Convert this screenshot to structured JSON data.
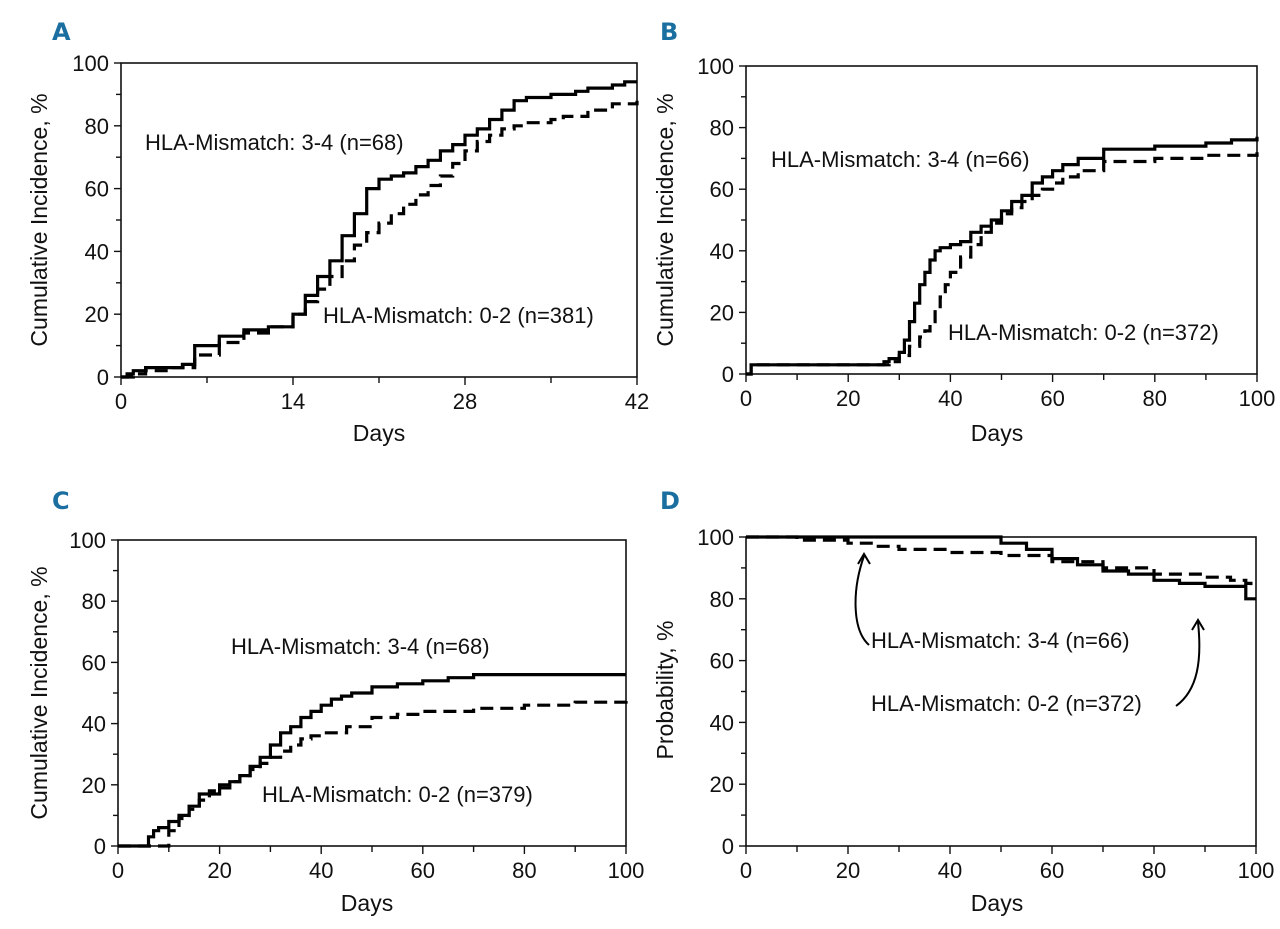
{
  "chart_data": [
    {
      "id": "A",
      "letter": "A",
      "type": "line",
      "xlabel": "Days",
      "ylabel": "Cumulative Incidence, %",
      "xlim": [
        0,
        42
      ],
      "ylim": [
        0,
        100
      ],
      "xticks": [
        0,
        14,
        28,
        42
      ],
      "yticks": [
        0,
        20,
        40,
        60,
        80,
        100
      ],
      "minor_xticks": [
        7,
        21,
        35
      ],
      "annotations": [
        "HLA-Mismatch: 3-4 (n=68)",
        "HLA-Mismatch: 0-2 (n=381)"
      ],
      "series": [
        {
          "name": "HLA-Mismatch: 3-4 (n=68)",
          "style": "solid",
          "x": [
            0,
            0.5,
            1,
            2,
            5,
            6,
            8,
            10,
            12,
            13,
            14,
            15,
            16,
            17,
            18,
            19,
            20,
            21,
            22,
            23,
            24,
            25,
            26,
            27,
            28,
            29,
            30,
            31,
            32,
            33,
            35,
            37,
            38,
            40,
            41,
            42
          ],
          "y": [
            0,
            1,
            2,
            3,
            4,
            10,
            13,
            15,
            16,
            16,
            20,
            26,
            32,
            37,
            45,
            52,
            60,
            63,
            64,
            65,
            67,
            69,
            72,
            74,
            77,
            79,
            82,
            85,
            88,
            89,
            90,
            91,
            92,
            93,
            94,
            94
          ]
        },
        {
          "name": "HLA-Mismatch: 0-2 (n=381)",
          "style": "dashed",
          "x": [
            0,
            1,
            2,
            4,
            6,
            8,
            10,
            12,
            14,
            15,
            16,
            17,
            18,
            19,
            20,
            21,
            22,
            23,
            24,
            25,
            26,
            27,
            28,
            29,
            30,
            31,
            32,
            33,
            35,
            36,
            38,
            40,
            42
          ],
          "y": [
            0,
            1,
            2,
            3,
            7,
            11,
            14,
            16,
            20,
            24,
            28,
            32,
            37,
            42,
            46,
            49,
            52,
            55,
            58,
            61,
            64,
            68,
            72,
            75,
            77,
            79,
            80,
            81,
            82,
            83,
            85,
            87,
            88
          ]
        }
      ]
    },
    {
      "id": "B",
      "letter": "B",
      "type": "line",
      "xlabel": "Days",
      "ylabel": "Cumulative Incidence, %",
      "xlim": [
        0,
        100
      ],
      "ylim": [
        0,
        100
      ],
      "xticks": [
        0,
        20,
        40,
        60,
        80,
        100
      ],
      "yticks": [
        0,
        20,
        40,
        60,
        80,
        100
      ],
      "minor_xticks": [
        10,
        30,
        50,
        70,
        90
      ],
      "annotations": [
        "HLA-Mismatch: 3-4 (n=66)",
        "HLA-Mismatch: 0-2 (n=372)"
      ],
      "series": [
        {
          "name": "HLA-Mismatch: 3-4 (n=66)",
          "style": "solid",
          "x": [
            0,
            1,
            20,
            25,
            27,
            28,
            30,
            31,
            32,
            33,
            34,
            35,
            36,
            37,
            38,
            40,
            42,
            44,
            46,
            48,
            50,
            52,
            54,
            56,
            58,
            60,
            62,
            65,
            70,
            80,
            90,
            95,
            100
          ],
          "y": [
            0,
            3,
            3,
            3,
            4,
            5,
            7,
            11,
            17,
            23,
            29,
            33,
            37,
            40,
            41,
            42,
            43,
            46,
            48,
            50,
            53,
            56,
            58,
            62,
            64,
            66,
            68,
            70,
            73,
            74,
            75,
            76,
            77
          ]
        },
        {
          "name": "HLA-Mismatch: 0-2 (n=372)",
          "style": "dashed",
          "x": [
            0,
            1,
            20,
            25,
            28,
            30,
            32,
            34,
            35,
            36,
            37,
            38,
            39,
            40,
            42,
            44,
            46,
            48,
            50,
            52,
            54,
            56,
            58,
            60,
            62,
            65,
            70,
            80,
            90,
            100
          ],
          "y": [
            0,
            3,
            3,
            3,
            4,
            6,
            9,
            12,
            14,
            17,
            21,
            25,
            29,
            33,
            38,
            42,
            46,
            49,
            52,
            54,
            56,
            58,
            60,
            62,
            64,
            66,
            69,
            70,
            71,
            72
          ]
        }
      ]
    },
    {
      "id": "C",
      "letter": "C",
      "type": "line",
      "xlabel": "Days",
      "ylabel": "Cumulative Incidence, %",
      "xlim": [
        0,
        100
      ],
      "ylim": [
        0,
        100
      ],
      "xticks": [
        0,
        20,
        40,
        60,
        80,
        100
      ],
      "yticks": [
        0,
        20,
        40,
        60,
        80,
        100
      ],
      "minor_xticks": [
        10,
        30,
        50,
        70,
        90
      ],
      "annotations": [
        "HLA-Mismatch: 3-4 (n=68)",
        "HLA-Mismatch: 0-2 (n=379)"
      ],
      "series": [
        {
          "name": "HLA-Mismatch: 3-4 (n=68)",
          "style": "solid",
          "x": [
            0,
            5,
            6,
            7,
            8,
            10,
            12,
            14,
            16,
            18,
            20,
            22,
            24,
            26,
            28,
            30,
            32,
            34,
            36,
            38,
            40,
            42,
            44,
            46,
            50,
            55,
            60,
            65,
            70,
            80,
            100
          ],
          "y": [
            0,
            0,
            3,
            5,
            6,
            8,
            10,
            13,
            17,
            17,
            20,
            21,
            23,
            26,
            29,
            33,
            37,
            39,
            42,
            44,
            46,
            48,
            49,
            50,
            52,
            53,
            54,
            55,
            56,
            56,
            56
          ]
        },
        {
          "name": "HLA-Mismatch: 0-2 (n=379)",
          "style": "dashed",
          "x": [
            0,
            8,
            10,
            12,
            14,
            16,
            18,
            20,
            22,
            24,
            26,
            28,
            30,
            32,
            34,
            36,
            38,
            40,
            45,
            50,
            55,
            60,
            70,
            80,
            90,
            100
          ],
          "y": [
            0,
            0,
            5,
            9,
            12,
            15,
            18,
            19,
            21,
            23,
            25,
            27,
            29,
            31,
            33,
            35,
            36,
            37,
            39,
            42,
            43,
            44,
            45,
            46,
            47,
            49
          ]
        }
      ]
    },
    {
      "id": "D",
      "letter": "D",
      "type": "line",
      "xlabel": "Days",
      "ylabel": "Probability, %",
      "xlim": [
        0,
        100
      ],
      "ylim": [
        0,
        100
      ],
      "xticks": [
        0,
        20,
        40,
        60,
        80,
        100
      ],
      "yticks": [
        0,
        20,
        40,
        60,
        80,
        100
      ],
      "minor_xticks": [
        10,
        30,
        50,
        70,
        90
      ],
      "annotations": [
        "HLA-Mismatch: 3-4 (n=66)",
        "HLA-Mismatch: 0-2 (n=372)"
      ],
      "series": [
        {
          "name": "HLA-Mismatch: 3-4 (n=66)",
          "style": "solid",
          "x": [
            0,
            48,
            50,
            55,
            60,
            65,
            70,
            75,
            80,
            85,
            90,
            95,
            98,
            100
          ],
          "y": [
            100,
            100,
            98,
            96,
            93,
            91,
            89,
            88,
            86,
            85,
            84,
            84,
            80,
            80
          ]
        },
        {
          "name": "HLA-Mismatch: 0-2 (n=372)",
          "style": "dashed",
          "x": [
            0,
            10,
            20,
            25,
            30,
            40,
            50,
            60,
            70,
            80,
            90,
            95,
            98,
            99
          ],
          "y": [
            100,
            99,
            98,
            97,
            96,
            95,
            94,
            92,
            90,
            88,
            87,
            86,
            85,
            83
          ]
        }
      ]
    }
  ]
}
